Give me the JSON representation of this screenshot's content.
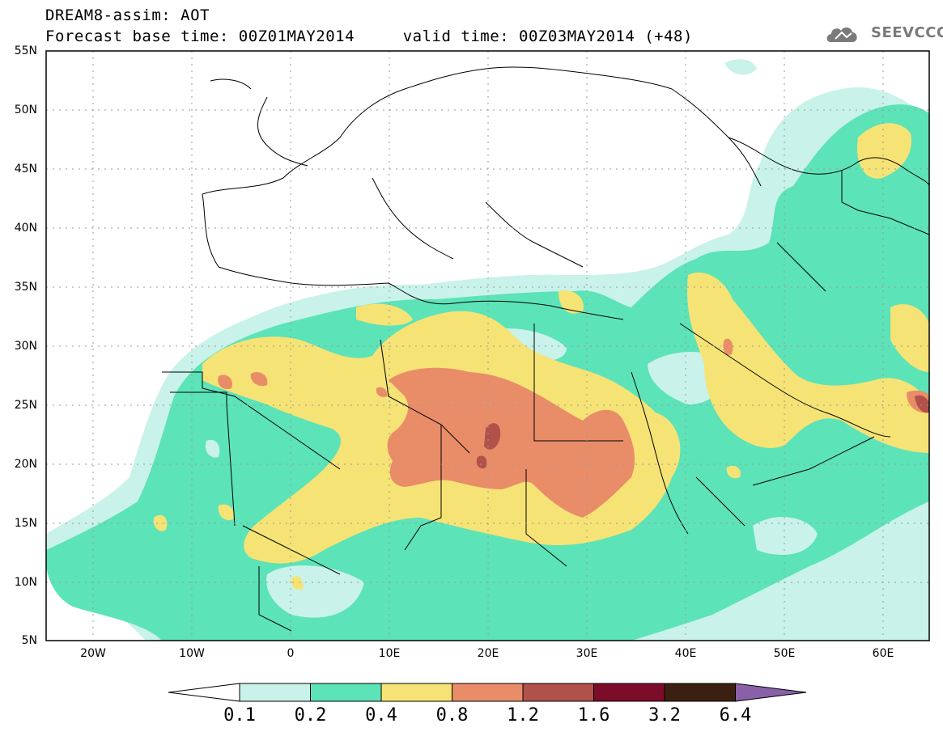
{
  "title_line1": "DREAM8-assim: AOT",
  "title_line2": "Forecast base time: 00Z01MAY2014     valid time: 00Z03MAY2014 (+48)",
  "logo": {
    "text": "SEEVCCC",
    "icon": "cloud-icon"
  },
  "map": {
    "lat_labels": [
      "55N",
      "50N",
      "45N",
      "40N",
      "35N",
      "30N",
      "25N",
      "20N",
      "15N",
      "10N",
      "5N"
    ],
    "lon_labels": [
      "20W",
      "10W",
      "0",
      "10E",
      "20E",
      "30E",
      "40E",
      "50E",
      "60E"
    ]
  },
  "colorbar": {
    "labels": [
      "0.1",
      "0.2",
      "0.4",
      "0.8",
      "1.2",
      "1.6",
      "3.2",
      "6.4"
    ],
    "colors": [
      "#c8f2ea",
      "#5de3b8",
      "#f6e375",
      "#e98d69",
      "#b1524a",
      "#7c0d2a",
      "#3b1f10",
      "#8a61a8"
    ]
  }
}
